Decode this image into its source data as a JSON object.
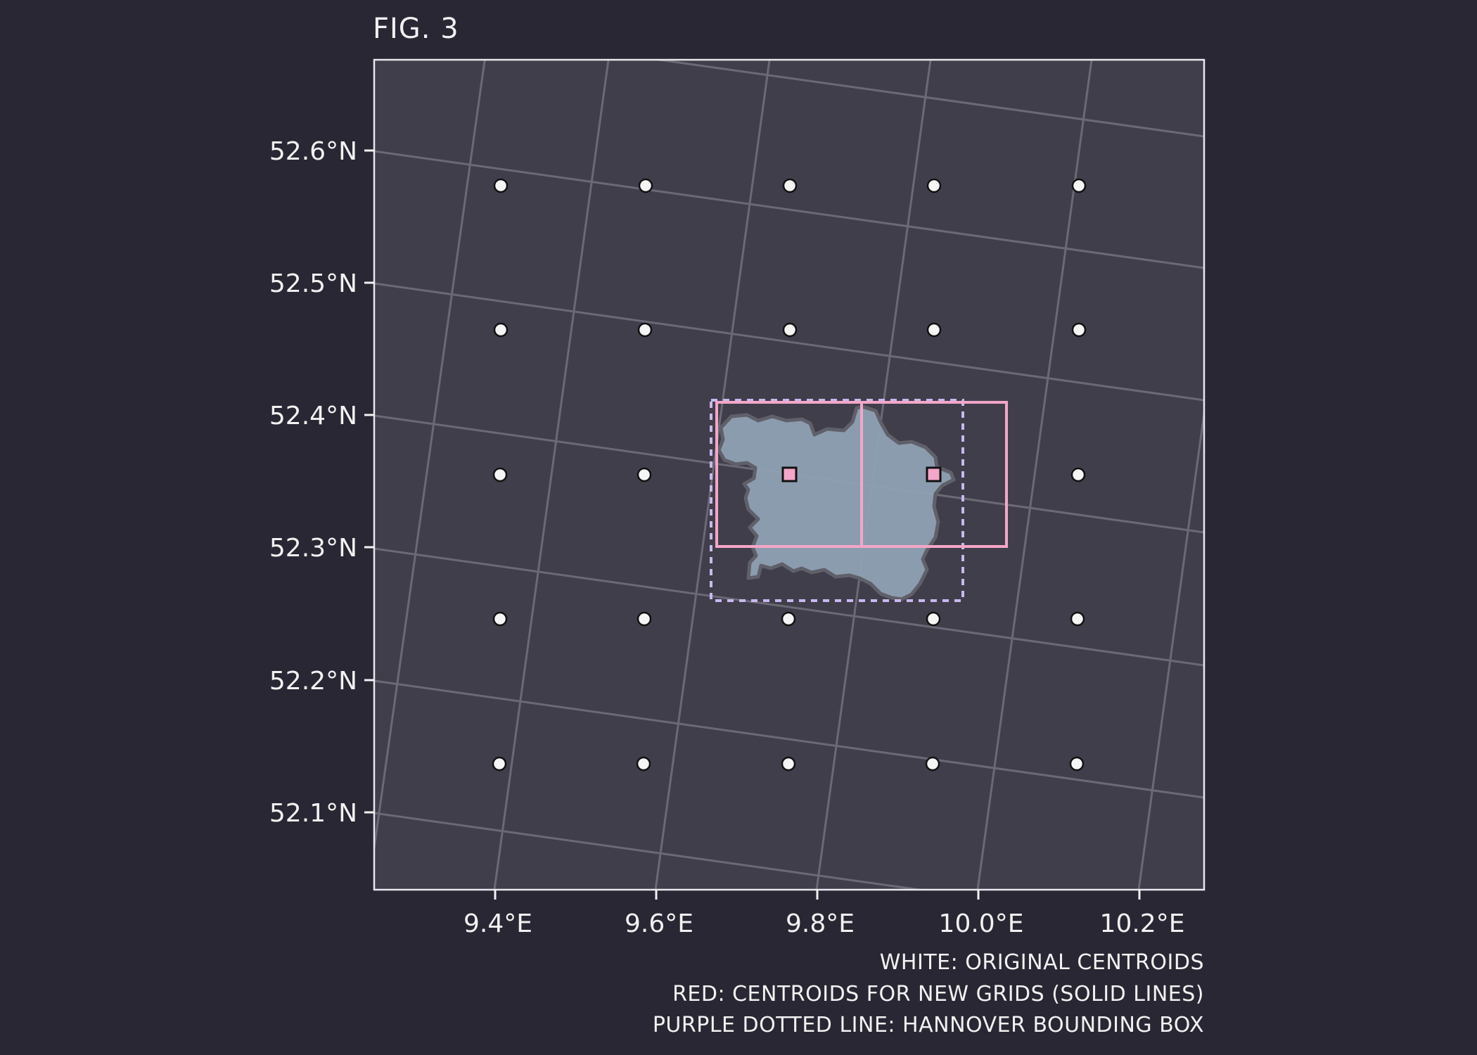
{
  "figure_label": "FIG. 3",
  "colors": {
    "background": "#282733",
    "plot_area": "#403e4a",
    "graticule": "#6b6975",
    "frame": "#e8e8ee",
    "region_fill": "#8fa1b3",
    "region_edge": "#60606a",
    "new_grid_lines": "#f4a6c8",
    "bounding_box": "#c9b8f0",
    "original_centroid": "#f5f5f5",
    "new_centroid": "#f4a6c8"
  },
  "axes": {
    "lon_ticks": [
      "9.4°E",
      "9.6°E",
      "9.8°E",
      "10.0°E",
      "10.2°E"
    ],
    "lat_ticks": [
      "52.6°N",
      "52.5°N",
      "52.4°N",
      "52.3°N",
      "52.2°N",
      "52.1°N"
    ]
  },
  "legend": {
    "white": "WHITE: ORIGINAL CENTROIDS",
    "red": "RED: CENTROIDS FOR NEW GRIDS (SOLID LINES)",
    "purple": "PURPLE DOTTED LINE: HANNOVER BOUNDING BOX"
  }
}
